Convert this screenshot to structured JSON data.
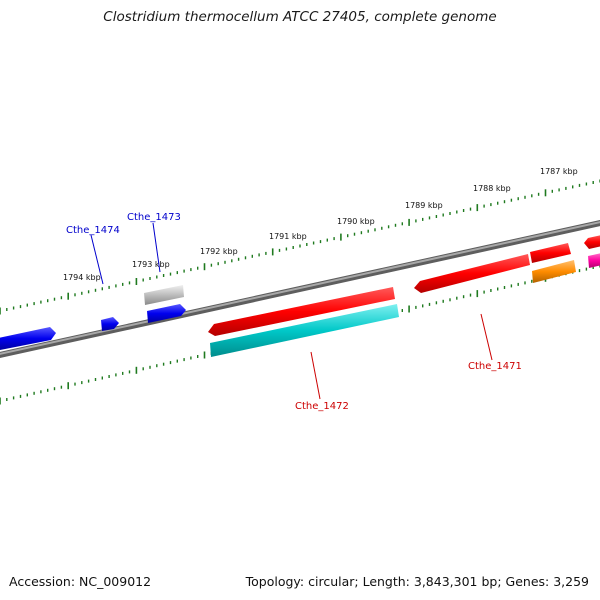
{
  "title": "Clostridium thermocellum ATCC 27405, complete genome",
  "accession": "Accession: NC_009012",
  "summary": "Topology: circular; Length: 3,843,301 bp; Genes: 3,259",
  "scale_labels": [
    "1787 kbp",
    "1788 kbp",
    "1789 kbp",
    "1790 kbp",
    "1791 kbp",
    "1792 kbp",
    "1793 kbp",
    "1794 kbp"
  ],
  "gene_labels": [
    {
      "text": "Cthe_1474",
      "color": "#0000cc"
    },
    {
      "text": "Cthe_1473",
      "color": "#0000cc"
    },
    {
      "text": "Cthe_1472",
      "color": "#cc0000"
    },
    {
      "text": "Cthe_1471",
      "color": "#cc0000"
    }
  ],
  "colors": {
    "backbone": "#808080",
    "tick": "#1f7a1f",
    "forward_red": "#ff0000",
    "reverse_cyan": "#00c8c8",
    "blue_gene": "#0000ee",
    "grey_gene": "#bdbdbd",
    "orange_gene": "#ff8c00",
    "magenta_gene": "#ff00a0"
  }
}
